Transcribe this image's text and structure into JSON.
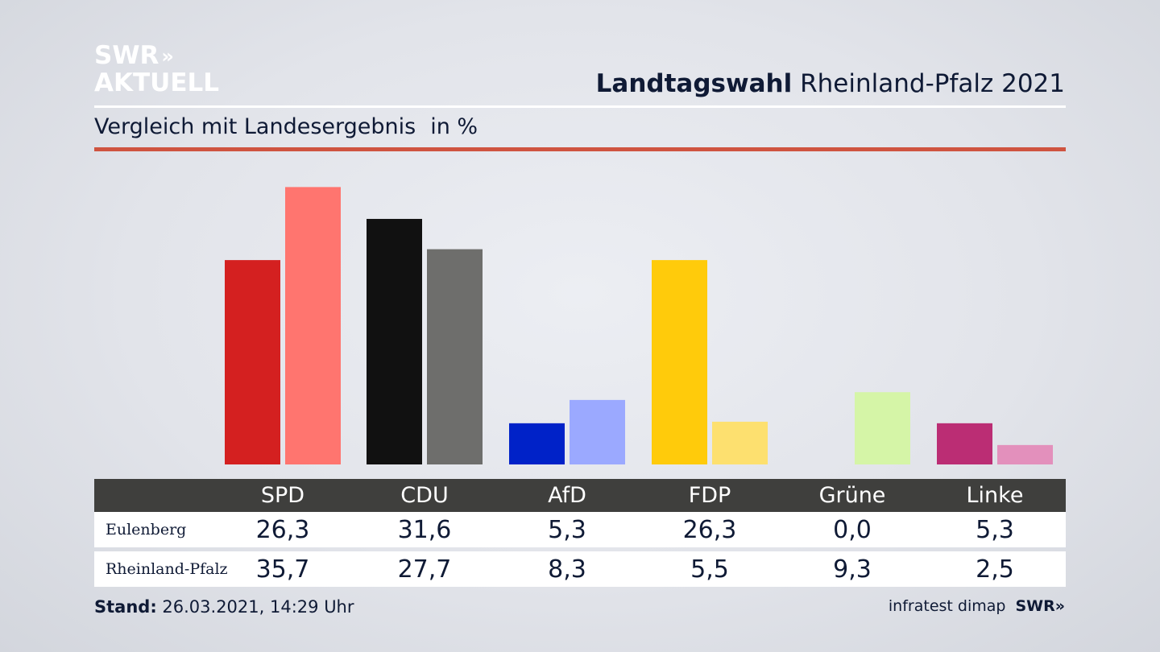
{
  "logo": {
    "line1": "SWR",
    "chevrons": "»",
    "line2": "AKTUELL"
  },
  "header": {
    "title_bold": "Landtagswahl",
    "title_rest": "Rheinland-Pfalz 2021"
  },
  "subtitle": {
    "text": "Vergleich mit Landesergebnis",
    "unit": "in %"
  },
  "colors": {
    "accent_rule": "#cf5440",
    "header_bg": "#3f3f3d",
    "SPD": [
      "#d42020",
      "#ff756f"
    ],
    "CDU": [
      "#111111",
      "#6e6e6c"
    ],
    "AfD": [
      "#0022c8",
      "#9ba9ff"
    ],
    "FDP": [
      "#ffcb0b",
      "#fde06f"
    ],
    "Grüne": [
      "#7bc144",
      "#d5f5a7"
    ],
    "Linke": [
      "#bb2d74",
      "#e390bc"
    ]
  },
  "chart_data": {
    "type": "bar",
    "categories": [
      "SPD",
      "CDU",
      "AfD",
      "FDP",
      "Grüne",
      "Linke"
    ],
    "series": [
      {
        "name": "Eulenberg",
        "values": [
          26.3,
          31.6,
          5.3,
          26.3,
          0.0,
          5.3
        ]
      },
      {
        "name": "Rheinland-Pfalz",
        "values": [
          35.7,
          27.7,
          8.3,
          5.5,
          9.3,
          2.5
        ]
      }
    ],
    "title": "Landtagswahl Rheinland-Pfalz 2021",
    "subtitle": "Vergleich mit Landesergebnis",
    "ylabel": "in %",
    "ylim": [
      0,
      37.5
    ],
    "grid": false
  },
  "table": {
    "rows": [
      {
        "label": "Eulenberg",
        "values": [
          "26,3",
          "31,6",
          "5,3",
          "26,3",
          "0,0",
          "5,3"
        ]
      },
      {
        "label": "Rheinland-Pfalz",
        "values": [
          "35,7",
          "27,7",
          "8,3",
          "5,5",
          "9,3",
          "2,5"
        ]
      }
    ]
  },
  "footer": {
    "stand_label": "Stand:",
    "stand_value": "26.03.2021, 14:29 Uhr",
    "source": "infratest dimap",
    "swr": "SWR»"
  }
}
